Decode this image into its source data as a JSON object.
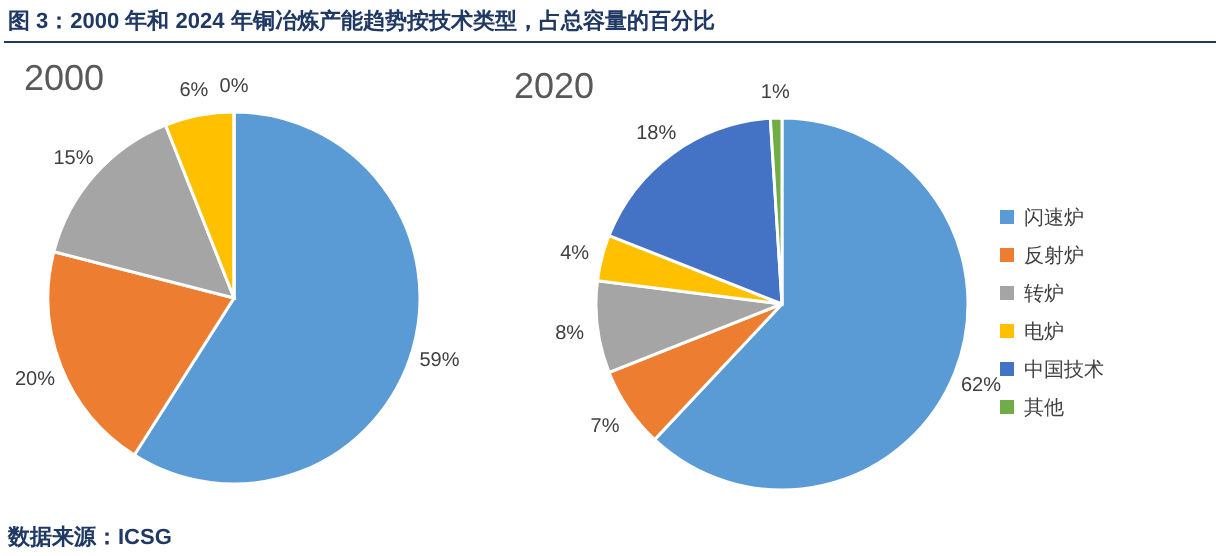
{
  "chart_data": [
    {
      "type": "pie",
      "title": "2000",
      "categories": [
        null,
        null,
        null,
        null,
        null
      ],
      "values": [
        59,
        20,
        15,
        6,
        0
      ],
      "value_labels": [
        "59%",
        "20%",
        "15%",
        "6%",
        "0%"
      ],
      "colors": [
        "#5b9bd5",
        "#ed7d31",
        "#a5a5a5",
        "#ffc000",
        "#70ad47"
      ],
      "legend": false,
      "annotations": [
        "图 3：2000 年和 2024 年铜冶炼产能趋势按技术类型，占总容量的百分比",
        "数据来源：ICSG"
      ]
    },
    {
      "type": "pie",
      "title": "2020",
      "categories": [
        "闪速炉",
        "反射炉",
        "转炉",
        "电炉",
        "中国技术",
        "其他"
      ],
      "values": [
        62,
        7,
        8,
        4,
        18,
        1
      ],
      "value_labels": [
        "62%",
        "7%",
        "8%",
        "4%",
        "18%",
        "1%"
      ],
      "colors": [
        "#5b9bd5",
        "#ed7d31",
        "#a5a5a5",
        "#ffc000",
        "#4472c4",
        "#70ad47"
      ],
      "legend": "right"
    }
  ]
}
